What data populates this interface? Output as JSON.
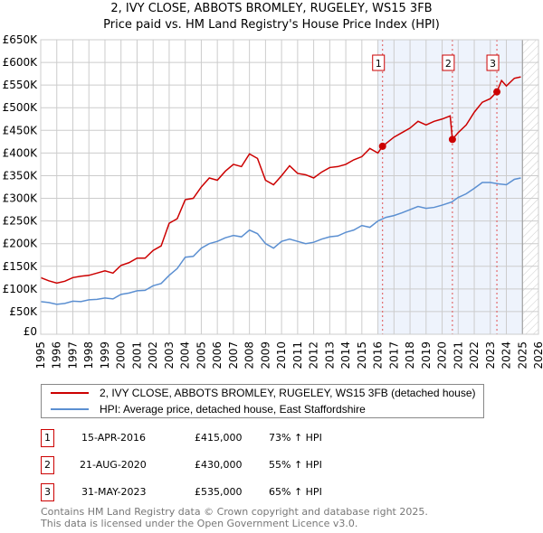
{
  "chart_data": {
    "type": "line",
    "title": "2, IVY CLOSE, ABBOTS BROMLEY, RUGELEY, WS15 3FB",
    "subtitle": "Price paid vs. HM Land Registry's House Price Index (HPI)",
    "xlim": [
      1995,
      2026
    ],
    "ylim": [
      0,
      650000
    ],
    "x_ticks": [
      "1995",
      "1996",
      "1997",
      "1998",
      "1999",
      "2000",
      "2001",
      "2002",
      "2003",
      "2004",
      "2005",
      "2006",
      "2007",
      "2008",
      "2009",
      "2010",
      "2011",
      "2012",
      "2013",
      "2014",
      "2015",
      "2016",
      "2017",
      "2018",
      "2019",
      "2020",
      "2021",
      "2022",
      "2023",
      "2024",
      "2025",
      "2026"
    ],
    "y_ticks": [
      "£0",
      "£50K",
      "£100K",
      "£150K",
      "£200K",
      "£250K",
      "£300K",
      "£350K",
      "£400K",
      "£450K",
      "£500K",
      "£550K",
      "£600K",
      "£650K"
    ],
    "grid": true,
    "shaded_range": [
      2016.0,
      2025.0
    ],
    "hatched_after": 2025.0,
    "series": [
      {
        "name": "2, IVY CLOSE, ABBOTS BROMLEY, RUGELEY, WS15 3FB (detached house)",
        "color": "#cc0000",
        "x": [
          1995,
          1995.5,
          1996,
          1996.5,
          1997,
          1997.5,
          1998,
          1998.5,
          1999,
          1999.5,
          2000,
          2000.5,
          2001,
          2001.5,
          2002,
          2002.5,
          2003,
          2003.5,
          2004,
          2004.5,
          2005,
          2005.5,
          2006,
          2006.5,
          2007,
          2007.5,
          2008,
          2008.5,
          2009,
          2009.5,
          2010,
          2010.5,
          2011,
          2011.5,
          2012,
          2012.5,
          2013,
          2013.5,
          2014,
          2014.5,
          2015,
          2015.5,
          2016,
          2016.29,
          2017,
          2017.5,
          2018,
          2018.5,
          2019,
          2019.5,
          2020,
          2020.5,
          2020.64,
          2021,
          2021.5,
          2022,
          2022.5,
          2023,
          2023.41,
          2023.7,
          2024,
          2024.5,
          2024.9
        ],
        "y": [
          125000,
          118000,
          113000,
          117000,
          125000,
          128000,
          130000,
          135000,
          140000,
          135000,
          152000,
          158000,
          168000,
          168000,
          185000,
          195000,
          245000,
          255000,
          297000,
          300000,
          325000,
          345000,
          340000,
          360000,
          375000,
          370000,
          398000,
          388000,
          340000,
          330000,
          350000,
          372000,
          355000,
          352000,
          345000,
          358000,
          368000,
          370000,
          375000,
          385000,
          392000,
          410000,
          400000,
          415000,
          435000,
          445000,
          455000,
          470000,
          462000,
          470000,
          475000,
          482000,
          430000,
          445000,
          462000,
          490000,
          512000,
          520000,
          535000,
          560000,
          548000,
          565000,
          568000
        ]
      },
      {
        "name": "HPI: Average price, detached house, East Staffordshire",
        "color": "#5b8fd1",
        "x": [
          1995,
          1995.5,
          1996,
          1996.5,
          1997,
          1997.5,
          1998,
          1998.5,
          1999,
          1999.5,
          2000,
          2000.5,
          2001,
          2001.5,
          2002,
          2002.5,
          2003,
          2003.5,
          2004,
          2004.5,
          2005,
          2005.5,
          2006,
          2006.5,
          2007,
          2007.5,
          2008,
          2008.5,
          2009,
          2009.5,
          2010,
          2010.5,
          2011,
          2011.5,
          2012,
          2012.5,
          2013,
          2013.5,
          2014,
          2014.5,
          2015,
          2015.5,
          2016,
          2016.5,
          2017,
          2017.5,
          2018,
          2018.5,
          2019,
          2019.5,
          2020,
          2020.6,
          2021,
          2021.5,
          2022,
          2022.5,
          2023,
          2023.5,
          2024,
          2024.5,
          2024.9
        ],
        "y": [
          72000,
          70000,
          66000,
          68000,
          73000,
          72000,
          76000,
          77000,
          80000,
          78000,
          88000,
          91000,
          96000,
          97000,
          107000,
          112000,
          130000,
          145000,
          170000,
          172000,
          190000,
          200000,
          205000,
          213000,
          218000,
          215000,
          230000,
          222000,
          200000,
          190000,
          205000,
          210000,
          205000,
          200000,
          203000,
          210000,
          215000,
          217000,
          225000,
          230000,
          240000,
          236000,
          250000,
          258000,
          262000,
          268000,
          275000,
          282000,
          278000,
          280000,
          285000,
          292000,
          302000,
          310000,
          322000,
          335000,
          335000,
          332000,
          330000,
          342000,
          345000
        ]
      }
    ],
    "sales": [
      {
        "label": "1",
        "x": 2016.29,
        "y": 415000,
        "date": "15-APR-2016",
        "price": "£415,000",
        "hpi": "73% ↑ HPI"
      },
      {
        "label": "2",
        "x": 2020.64,
        "y": 430000,
        "date": "21-AUG-2020",
        "price": "£430,000",
        "hpi": "55% ↑ HPI"
      },
      {
        "label": "3",
        "x": 2023.41,
        "y": 535000,
        "date": "31-MAY-2023",
        "price": "£535,000",
        "hpi": "65% ↑ HPI"
      }
    ]
  },
  "footer": {
    "line1": "Contains HM Land Registry data © Crown copyright and database right 2025.",
    "line2": "This data is licensed under the Open Government Licence v3.0."
  }
}
